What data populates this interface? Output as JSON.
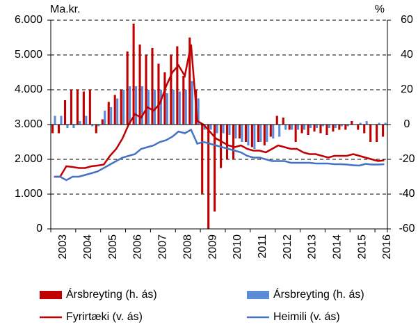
{
  "chart_data": {
    "type": "combo",
    "y_label": "Ma.kr.",
    "y2_label": "%",
    "categories": [
      "2003",
      null,
      null,
      null,
      "2004",
      null,
      null,
      null,
      "2005",
      null,
      null,
      null,
      "2006",
      null,
      null,
      null,
      "2007",
      null,
      null,
      null,
      "2008",
      null,
      null,
      null,
      "2009",
      null,
      null,
      null,
      "2010",
      null,
      null,
      null,
      "2011",
      null,
      null,
      null,
      "2012",
      null,
      null,
      null,
      "2013",
      null,
      null,
      null,
      "2014",
      null,
      null,
      null,
      "2015",
      null,
      null,
      null,
      "2016",
      null
    ],
    "ylim": [
      0,
      6000
    ],
    "yticks": [
      0,
      {
        "value": 1000,
        "label": "1.000"
      },
      {
        "value": 2000,
        "label": "2.000"
      },
      {
        "value": 3000,
        "label": "3.000"
      },
      {
        "value": 4000,
        "label": "4.000"
      },
      {
        "value": 5000,
        "label": "5.000"
      },
      {
        "value": 6000,
        "label": "6.000"
      }
    ],
    "y2lim": [
      -60,
      60
    ],
    "y2ticks": [
      -60,
      -40,
      -20,
      0,
      20,
      40,
      60
    ],
    "grid": true,
    "series": [
      {
        "name": "Ársbreyting (h. ás)",
        "type": "bar",
        "axis": "y2",
        "color": "#c00000",
        "values": [
          -5,
          -5,
          14,
          20,
          20,
          19,
          20,
          -5,
          3,
          13,
          17,
          20,
          42,
          58,
          46,
          40,
          44,
          35,
          30,
          40,
          45,
          28,
          50,
          20,
          -40,
          -60,
          -50,
          -25,
          -20,
          -20,
          -8,
          -10,
          -13,
          -10,
          -12,
          -7,
          5,
          4,
          -3,
          -10,
          -5,
          -6,
          -4,
          -5,
          -6,
          -4,
          -3,
          -3,
          2,
          -3,
          -5,
          -10,
          -10,
          -7
        ]
      },
      {
        "name": "Ársbreyting (h. ás)",
        "type": "bar",
        "axis": "y2",
        "color": "#5b8bd6",
        "values": [
          5,
          5,
          -2,
          -2,
          2,
          5,
          -1,
          -1,
          8,
          10,
          15,
          20,
          22,
          22,
          22,
          20,
          20,
          20,
          18,
          20,
          19,
          20,
          25,
          15,
          -3,
          -3,
          -5,
          -5,
          -6,
          -8,
          -10,
          -12,
          -14,
          -10,
          -10,
          -8,
          -7,
          -3,
          -3,
          -3,
          -3,
          -2,
          -2,
          -1,
          -2,
          -2,
          -1,
          -1,
          0,
          1,
          2,
          0,
          1,
          1
        ]
      },
      {
        "name": "Fyrirtæki (v. ás)",
        "type": "line",
        "axis": "y",
        "color": "#c00000",
        "values": [
          1500,
          1500,
          1800,
          1780,
          1750,
          1750,
          1800,
          1820,
          1850,
          2100,
          2300,
          2600,
          3000,
          3300,
          3200,
          3500,
          3400,
          3600,
          4100,
          4500,
          4700,
          4400,
          5300,
          3100,
          3000,
          2800,
          2600,
          2500,
          2400,
          2350,
          2400,
          2300,
          2250,
          2250,
          2200,
          2300,
          2400,
          2350,
          2300,
          2300,
          2200,
          2150,
          2150,
          2100,
          2050,
          2100,
          2100,
          2100,
          2150,
          2100,
          2050,
          2000,
          1950,
          1970
        ]
      },
      {
        "name": "Heimili (v. ás)",
        "type": "line",
        "axis": "y",
        "color": "#4472c4",
        "values": [
          1500,
          1500,
          1400,
          1500,
          1500,
          1550,
          1600,
          1650,
          1750,
          1850,
          1950,
          2050,
          2100,
          2150,
          2300,
          2350,
          2400,
          2500,
          2550,
          2650,
          2800,
          2750,
          2850,
          2450,
          2500,
          2450,
          2400,
          2350,
          2300,
          2250,
          2200,
          2100,
          2050,
          2050,
          2000,
          1950,
          1950,
          1950,
          1900,
          1900,
          1900,
          1900,
          1880,
          1880,
          1880,
          1860,
          1860,
          1850,
          1830,
          1820,
          1870,
          1850,
          1850,
          1860
        ]
      }
    ]
  }
}
